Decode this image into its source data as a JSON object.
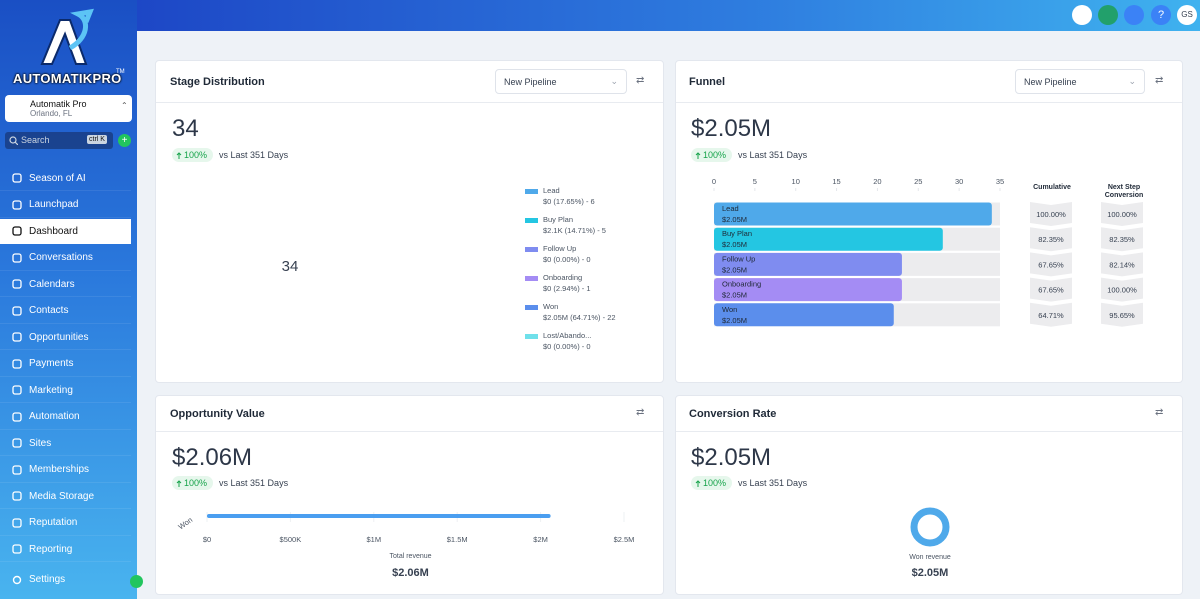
{
  "sidebar": {
    "brand": "AUTOMATIKPRO",
    "trademark": "TM",
    "account_name": "Automatik Pro",
    "account_location": "Orlando, FL",
    "search": "Search",
    "search_shortcut": "ctrl K",
    "menu": [
      "Season of AI",
      "Launchpad",
      "Dashboard",
      "Conversations",
      "Calendars",
      "Contacts",
      "Opportunities",
      "Payments",
      "Marketing",
      "Automation",
      "Sites",
      "Memberships",
      "Media Storage",
      "Reputation",
      "Reporting"
    ],
    "settings": "Settings"
  },
  "topbar": {
    "avatar": "GS"
  },
  "stage_distribution": {
    "title": "Stage Distribution",
    "pipeline": "New Pipeline",
    "total": "34",
    "change": "100%",
    "comparison": "vs Last 351 Days",
    "center_label": "34",
    "stages": [
      {
        "name": "Lead",
        "detail": "$0 (17.65%) - 6",
        "count": 6,
        "color": "#4fa9ea"
      },
      {
        "name": "Buy Plan",
        "detail": "$2.1K (14.71%) - 5",
        "count": 5,
        "color": "#24c6e2"
      },
      {
        "name": "Follow Up",
        "detail": "$0 (0.00%) - 0",
        "count": 0,
        "color": "#7f8cf0"
      },
      {
        "name": "Onboarding",
        "detail": "$0 (2.94%) - 1",
        "count": 1,
        "color": "#a48cf4"
      },
      {
        "name": "Won",
        "detail": "$2.05M (64.71%) - 22",
        "count": 22,
        "color": "#5b8eec"
      },
      {
        "name": "Lost/Abando...",
        "detail": "$0 (0.00%) - 0",
        "count": 0,
        "color": "#6fe0ea"
      }
    ]
  },
  "funnel": {
    "title": "Funnel",
    "pipeline": "New Pipeline",
    "total": "$2.05M",
    "change": "100%",
    "comparison": "vs Last 351 Days",
    "xlim": [
      0,
      35
    ],
    "xticks": [
      0,
      5,
      10,
      15,
      20,
      25,
      30,
      35
    ],
    "cumulative_header": "Cumulative",
    "next_step_header": "Next Step Conversion",
    "stages": [
      {
        "name": "Lead",
        "amount": "$2.05M",
        "value": 34,
        "color": "#4fa9ea",
        "cumulative": "100.00%",
        "next_step": "100.00%"
      },
      {
        "name": "Buy Plan",
        "amount": "$2.05M",
        "value": 28,
        "color": "#24c6e2",
        "cumulative": "82.35%",
        "next_step": "82.35%"
      },
      {
        "name": "Follow Up",
        "amount": "$2.05M",
        "value": 23,
        "color": "#7f8cf0",
        "cumulative": "67.65%",
        "next_step": "82.14%"
      },
      {
        "name": "Onboarding",
        "amount": "$2.05M",
        "value": 23,
        "color": "#a48cf4",
        "cumulative": "67.65%",
        "next_step": "100.00%"
      },
      {
        "name": "Won",
        "amount": "$2.05M",
        "value": 22,
        "color": "#5b8eec",
        "cumulative": "64.71%",
        "next_step": "95.65%"
      }
    ]
  },
  "opportunity_value": {
    "title": "Opportunity Value",
    "total": "$2.06M",
    "change": "100%",
    "comparison": "vs Last 351 Days",
    "category": "Won",
    "value": 2060000,
    "color": "#4a9ef0",
    "xlim": [
      0,
      2500000
    ],
    "xticks": [
      {
        "value": 0,
        "label": "$0"
      },
      {
        "value": 500000,
        "label": "$500K"
      },
      {
        "value": 1000000,
        "label": "$1M"
      },
      {
        "value": 1500000,
        "label": "$1.5M"
      },
      {
        "value": 2000000,
        "label": "$2M"
      },
      {
        "value": 2500000,
        "label": "$2.5M"
      }
    ],
    "footer_label": "Total revenue",
    "footer_value": "$2.06M"
  },
  "conversion_rate": {
    "title": "Conversion Rate",
    "total": "$2.05M",
    "change": "100%",
    "comparison": "vs Last 351 Days",
    "footer_label": "Won revenue",
    "footer_value": "$2.05M"
  }
}
